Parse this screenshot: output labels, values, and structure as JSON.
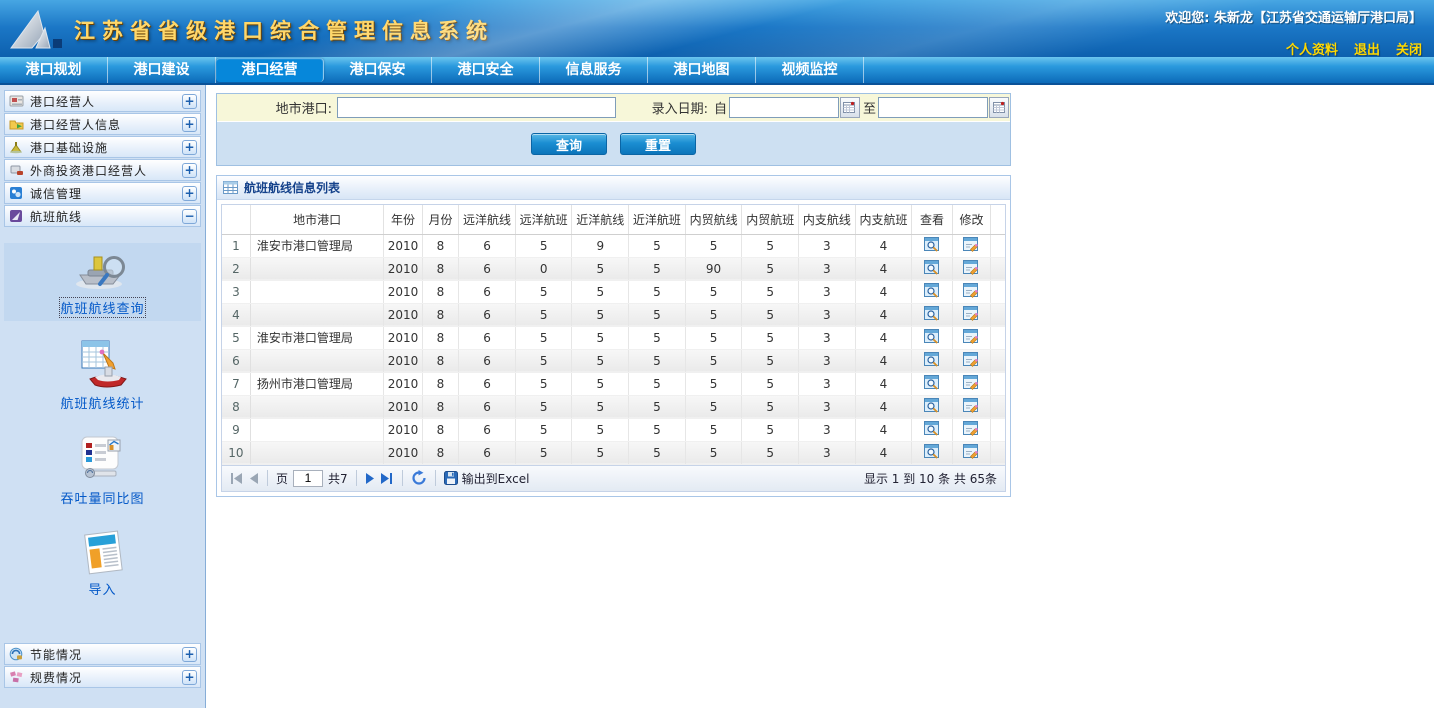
{
  "colors": {
    "header_blue": "#1b77c6",
    "accent_blue": "#0687da",
    "title_gold": "#ffd76a",
    "link_yellow": "#ffd800",
    "form_label_bg": "#f7f7d9",
    "sidebar_bg": "#cfe0f3",
    "panel_title_text": "#15428b"
  },
  "header": {
    "title": "江苏省省级港口综合管理信息系统",
    "welcome": "欢迎您: 朱新龙【江苏省交通运输厅港口局】",
    "links": [
      {
        "label": "个人资料"
      },
      {
        "label": "退出"
      },
      {
        "label": "关闭"
      }
    ]
  },
  "nav": {
    "tabs": [
      {
        "label": "港口规划",
        "active": false
      },
      {
        "label": "港口建设",
        "active": false
      },
      {
        "label": "港口经营",
        "active": true
      },
      {
        "label": "港口保安",
        "active": false
      },
      {
        "label": "港口安全",
        "active": false
      },
      {
        "label": "信息服务",
        "active": false
      },
      {
        "label": "港口地图",
        "active": false
      },
      {
        "label": "视频监控",
        "active": false
      }
    ]
  },
  "sidebar": {
    "groups_top": [
      {
        "label": "港口经营人",
        "toggle": "+",
        "icon": "operator-icon"
      },
      {
        "label": "港口经营人信息",
        "toggle": "+",
        "icon": "operator-info-icon"
      },
      {
        "label": "港口基础设施",
        "toggle": "+",
        "icon": "infrastructure-icon"
      },
      {
        "label": "外商投资港口经营人",
        "toggle": "+",
        "icon": "foreign-investment-icon"
      },
      {
        "label": "诚信管理",
        "toggle": "+",
        "icon": "integrity-icon"
      },
      {
        "label": "航班航线",
        "toggle": "−",
        "icon": "flight-route-icon"
      }
    ],
    "shortcuts": [
      {
        "label": "航班航线查询",
        "selected": true,
        "icon": "route-query-icon"
      },
      {
        "label": "航班航线统计",
        "selected": false,
        "icon": "route-stats-icon"
      },
      {
        "label": "吞吐量同比图",
        "selected": false,
        "icon": "throughput-chart-icon"
      },
      {
        "label": "导入",
        "selected": false,
        "icon": "import-icon"
      }
    ],
    "groups_bottom": [
      {
        "label": "节能情况",
        "toggle": "+",
        "icon": "energy-icon"
      },
      {
        "label": "规费情况",
        "toggle": "+",
        "icon": "fees-icon"
      }
    ]
  },
  "search": {
    "port_label": "地市港口:",
    "port_value": "",
    "date_label": "录入日期:",
    "from_label": "自",
    "to_label": "至",
    "date_from_value": "",
    "date_to_value": "",
    "query_button": "查询",
    "reset_button": "重置"
  },
  "panel": {
    "title": "航班航线信息列表"
  },
  "table": {
    "headers": [
      "",
      "地市港口",
      "年份",
      "月份",
      "远洋航线",
      "远洋航班",
      "近洋航线",
      "近洋航班",
      "内贸航线",
      "内贸航班",
      "内支航线",
      "内支航班",
      "查看",
      "修改"
    ],
    "action_icons": {
      "view": "view-icon",
      "edit": "edit-icon"
    },
    "rows": [
      {
        "num": "1",
        "port": "淮安市港口管理局",
        "values": [
          "2010",
          "8",
          "6",
          "5",
          "9",
          "5",
          "5",
          "5",
          "3",
          "4"
        ]
      },
      {
        "num": "2",
        "port": "",
        "values": [
          "2010",
          "8",
          "6",
          "0",
          "5",
          "5",
          "90",
          "5",
          "3",
          "4"
        ]
      },
      {
        "num": "3",
        "port": "",
        "values": [
          "2010",
          "8",
          "6",
          "5",
          "5",
          "5",
          "5",
          "5",
          "3",
          "4"
        ]
      },
      {
        "num": "4",
        "port": "",
        "values": [
          "2010",
          "8",
          "6",
          "5",
          "5",
          "5",
          "5",
          "5",
          "3",
          "4"
        ]
      },
      {
        "num": "5",
        "port": "淮安市港口管理局",
        "values": [
          "2010",
          "8",
          "6",
          "5",
          "5",
          "5",
          "5",
          "5",
          "3",
          "4"
        ]
      },
      {
        "num": "6",
        "port": "",
        "values": [
          "2010",
          "8",
          "6",
          "5",
          "5",
          "5",
          "5",
          "5",
          "3",
          "4"
        ]
      },
      {
        "num": "7",
        "port": "扬州市港口管理局",
        "values": [
          "2010",
          "8",
          "6",
          "5",
          "5",
          "5",
          "5",
          "5",
          "3",
          "4"
        ]
      },
      {
        "num": "8",
        "port": "",
        "values": [
          "2010",
          "8",
          "6",
          "5",
          "5",
          "5",
          "5",
          "5",
          "3",
          "4"
        ]
      },
      {
        "num": "9",
        "port": "",
        "values": [
          "2010",
          "8",
          "6",
          "5",
          "5",
          "5",
          "5",
          "5",
          "3",
          "4"
        ]
      },
      {
        "num": "10",
        "port": "",
        "values": [
          "2010",
          "8",
          "6",
          "5",
          "5",
          "5",
          "5",
          "5",
          "3",
          "4"
        ]
      }
    ]
  },
  "pagination": {
    "page_label": "页",
    "page_value": "1",
    "total_pages_label": "共7",
    "export_label": "输出到Excel",
    "summary": "显示 1 到 10 条 共 65条"
  }
}
